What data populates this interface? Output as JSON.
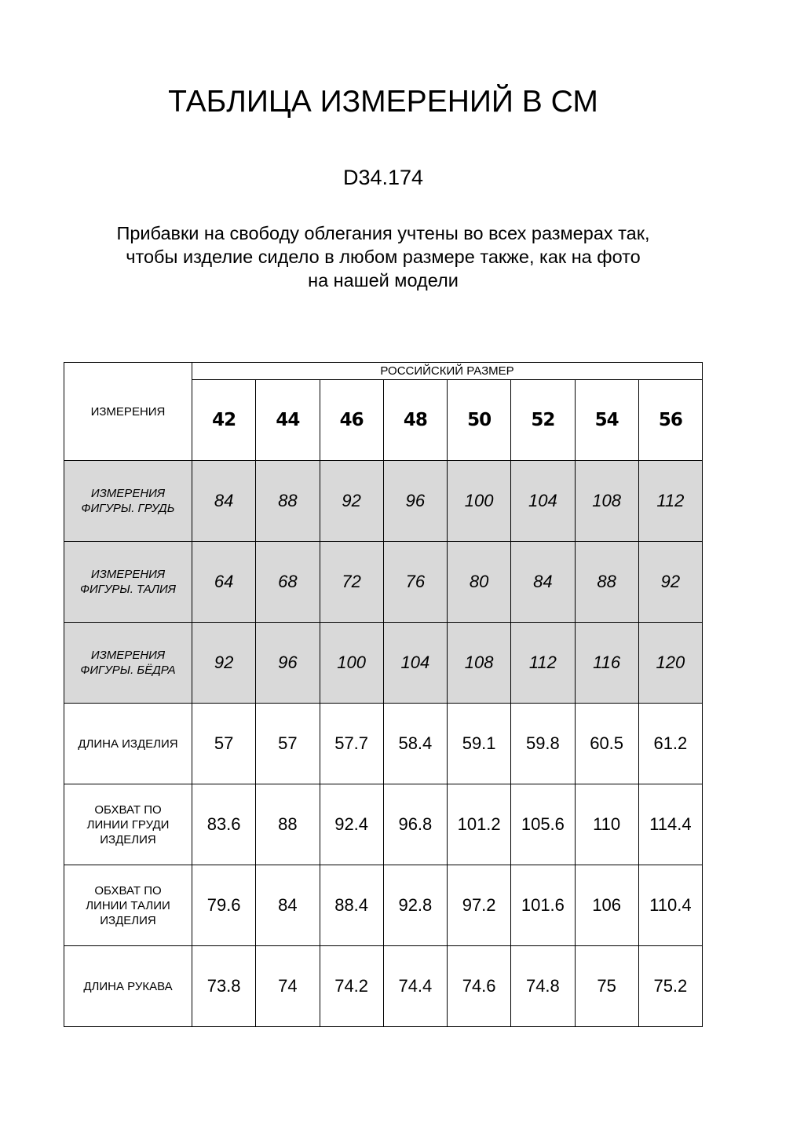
{
  "title": "ТАБЛИЦА ИЗМЕРЕНИЙ В СМ",
  "code": "D34.174",
  "note": [
    "Прибавки на свободу облегания учтены во всех размерах так,",
    "чтобы изделие сидело в любом размере также, как на фото",
    "на нашей модели"
  ],
  "table": {
    "corner": "ИЗМЕРЕНИЯ",
    "group_header": "РОССИЙСКИЙ РАЗМЕР",
    "sizes": [
      "42",
      "44",
      "46",
      "48",
      "50",
      "52",
      "54",
      "56"
    ],
    "shade_color": "#d9d9d9",
    "rows": [
      {
        "label": [
          "ИЗМЕРЕНИЯ",
          "ФИГУРЫ. ГРУДЬ"
        ],
        "shaded": true,
        "values": [
          "84",
          "88",
          "92",
          "96",
          "100",
          "104",
          "108",
          "112"
        ]
      },
      {
        "label": [
          "ИЗМЕРЕНИЯ",
          "ФИГУРЫ. ТАЛИЯ"
        ],
        "shaded": true,
        "values": [
          "64",
          "68",
          "72",
          "76",
          "80",
          "84",
          "88",
          "92"
        ]
      },
      {
        "label": [
          "ИЗМЕРЕНИЯ",
          "ФИГУРЫ. БЁДРА"
        ],
        "shaded": true,
        "values": [
          "92",
          "96",
          "100",
          "104",
          "108",
          "112",
          "116",
          "120"
        ]
      },
      {
        "label": [
          "ДЛИНА ИЗДЕЛИЯ"
        ],
        "shaded": false,
        "values": [
          "57",
          "57",
          "57.7",
          "58.4",
          "59.1",
          "59.8",
          "60.5",
          "61.2"
        ]
      },
      {
        "label": [
          "ОБХВАТ ПО",
          "ЛИНИИ ГРУДИ",
          "ИЗДЕЛИЯ"
        ],
        "shaded": false,
        "values": [
          "83.6",
          "88",
          "92.4",
          "96.8",
          "101.2",
          "105.6",
          "110",
          "114.4"
        ]
      },
      {
        "label": [
          "ОБХВАТ ПО",
          "ЛИНИИ ТАЛИИ",
          "ИЗДЕЛИЯ"
        ],
        "shaded": false,
        "values": [
          "79.6",
          "84",
          "88.4",
          "92.8",
          "97.2",
          "101.6",
          "106",
          "110.4"
        ]
      },
      {
        "label": [
          "ДЛИНА РУКАВА"
        ],
        "shaded": false,
        "values": [
          "73.8",
          "74",
          "74.2",
          "74.4",
          "74.6",
          "74.8",
          "75",
          "75.2"
        ]
      }
    ]
  }
}
